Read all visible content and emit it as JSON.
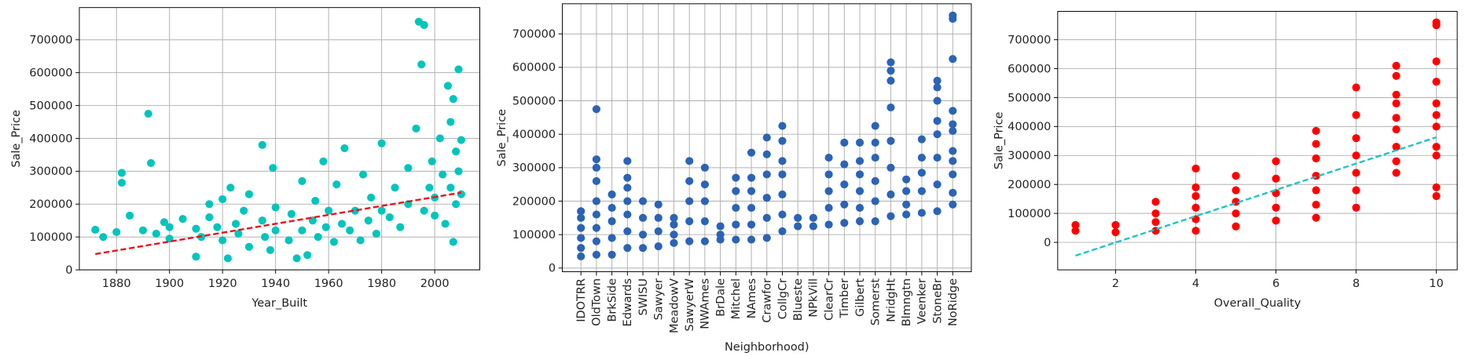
{
  "chart_data": [
    {
      "type": "scatter",
      "x_label": "Year_Built",
      "y_label": "Sale_Price",
      "color": "#00c5bc",
      "grid": true,
      "xlim": [
        1866,
        2017
      ],
      "ylim": [
        0,
        798000
      ],
      "xticks": [
        1880,
        1900,
        1920,
        1940,
        1960,
        1980,
        2000
      ],
      "yticks": [
        0,
        100000,
        200000,
        300000,
        400000,
        500000,
        600000,
        700000
      ],
      "x": [
        1872,
        1875,
        1880,
        1882,
        1882,
        1885,
        1890,
        1892,
        1893,
        1895,
        1898,
        1900,
        1900,
        1905,
        1910,
        1910,
        1912,
        1915,
        1915,
        1918,
        1920,
        1920,
        1922,
        1923,
        1925,
        1926,
        1928,
        1930,
        1930,
        1935,
        1935,
        1936,
        1938,
        1939,
        1940,
        1940,
        1945,
        1946,
        1948,
        1950,
        1950,
        1952,
        1954,
        1955,
        1956,
        1958,
        1959,
        1960,
        1962,
        1963,
        1965,
        1966,
        1968,
        1970,
        1972,
        1973,
        1975,
        1976,
        1978,
        1980,
        1980,
        1983,
        1985,
        1987,
        1990,
        1990,
        1993,
        1994,
        1995,
        1996,
        1996,
        1998,
        1999,
        2000,
        2000,
        2002,
        2003,
        2004,
        2005,
        2006,
        2006,
        2007,
        2007,
        2008,
        2008,
        2009,
        2009,
        2010,
        2010
      ],
      "values": [
        122000,
        100000,
        115000,
        295000,
        265000,
        165000,
        120000,
        475000,
        325000,
        110000,
        145000,
        95000,
        130000,
        155000,
        125000,
        40000,
        100000,
        160000,
        200000,
        130000,
        90000,
        215000,
        35000,
        250000,
        140000,
        110000,
        180000,
        70000,
        230000,
        380000,
        150000,
        100000,
        60000,
        310000,
        190000,
        120000,
        90000,
        170000,
        35000,
        120000,
        270000,
        45000,
        150000,
        210000,
        100000,
        330000,
        130000,
        180000,
        85000,
        260000,
        140000,
        370000,
        120000,
        180000,
        90000,
        290000,
        150000,
        220000,
        110000,
        180000,
        385000,
        160000,
        250000,
        130000,
        200000,
        310000,
        430000,
        755000,
        625000,
        745000,
        180000,
        250000,
        330000,
        220000,
        165000,
        400000,
        290000,
        140000,
        560000,
        450000,
        250000,
        520000,
        85000,
        360000,
        200000,
        610000,
        300000,
        395000,
        230000
      ],
      "trend": {
        "x": [
          1872,
          2010
        ],
        "values": [
          48000,
          235000
        ],
        "color": "#e8141b",
        "style": "dashed"
      }
    },
    {
      "type": "strip",
      "x_label": "Neighborhood)",
      "y_label": "Sale_Price",
      "color": "#2b63b6",
      "grid": true,
      "ylim": [
        -11000,
        790000
      ],
      "yticks": [
        0,
        100000,
        200000,
        300000,
        400000,
        500000,
        600000,
        700000
      ],
      "categories": [
        "IDOTRR",
        "OldTown",
        "BrkSide",
        "Edwards",
        "SWISU",
        "Sawyer",
        "MeadowV",
        "SawyerW",
        "NWAmes",
        "BrDale",
        "Mitchel",
        "NAmes",
        "Crawfor",
        "CollgCr",
        "Blueste",
        "NPkVill",
        "ClearCr",
        "Timber",
        "Gilbert",
        "Somerst",
        "NridgHt",
        "Blmngtn",
        "Veenker",
        "StoneBr",
        "NoRidge"
      ],
      "values": [
        [
          35000,
          60000,
          90000,
          120000,
          150000,
          170000
        ],
        [
          40000,
          80000,
          120000,
          160000,
          200000,
          260000,
          300000,
          325000,
          475000
        ],
        [
          40000,
          90000,
          140000,
          180000,
          220000
        ],
        [
          60000,
          110000,
          160000,
          200000,
          240000,
          270000,
          320000
        ],
        [
          60000,
          100000,
          150000,
          200000
        ],
        [
          65000,
          110000,
          150000,
          190000
        ],
        [
          75000,
          100000,
          130000,
          150000
        ],
        [
          80000,
          140000,
          200000,
          260000,
          320000
        ],
        [
          80000,
          140000,
          200000,
          250000,
          300000
        ],
        [
          85000,
          100000,
          125000
        ],
        [
          85000,
          130000,
          180000,
          230000,
          270000
        ],
        [
          85000,
          130000,
          180000,
          230000,
          270000,
          345000
        ],
        [
          90000,
          150000,
          210000,
          280000,
          340000,
          390000
        ],
        [
          110000,
          160000,
          220000,
          280000,
          320000,
          380000,
          425000
        ],
        [
          125000,
          150000
        ],
        [
          125000,
          150000
        ],
        [
          130000,
          180000,
          230000,
          280000,
          330000
        ],
        [
          135000,
          190000,
          250000,
          310000,
          375000
        ],
        [
          140000,
          180000,
          230000,
          280000,
          320000,
          375000
        ],
        [
          140000,
          200000,
          260000,
          330000,
          375000,
          425000
        ],
        [
          155000,
          220000,
          300000,
          380000,
          480000,
          560000,
          590000,
          615000
        ],
        [
          160000,
          190000,
          230000,
          265000
        ],
        [
          165000,
          230000,
          285000,
          330000,
          385000
        ],
        [
          170000,
          250000,
          330000,
          400000,
          440000,
          500000,
          540000,
          560000
        ],
        [
          190000,
          225000,
          280000,
          320000,
          350000,
          410000,
          430000,
          470000,
          625000,
          745000,
          755000
        ]
      ]
    },
    {
      "type": "scatter-groups",
      "x_label": "Overall_Quality",
      "y_label": "Sale_Price",
      "color": "#ff0000",
      "grid": true,
      "xlim": [
        0.556,
        10.52
      ],
      "ylim": [
        -95000,
        798000
      ],
      "xticks": [
        2,
        4,
        6,
        8,
        10
      ],
      "yticks": [
        0,
        100000,
        200000,
        300000,
        400000,
        500000,
        600000,
        700000
      ],
      "x": [
        1,
        2,
        3,
        4,
        5,
        6,
        7,
        8,
        9,
        10
      ],
      "values": [
        [
          40000,
          60000
        ],
        [
          35000,
          60000
        ],
        [
          40000,
          70000,
          100000,
          140000
        ],
        [
          40000,
          80000,
          120000,
          160000,
          190000,
          255000
        ],
        [
          55000,
          100000,
          140000,
          180000,
          230000
        ],
        [
          75000,
          120000,
          170000,
          220000,
          280000
        ],
        [
          85000,
          130000,
          180000,
          230000,
          290000,
          340000,
          385000
        ],
        [
          120000,
          180000,
          240000,
          300000,
          360000,
          440000,
          535000
        ],
        [
          240000,
          280000,
          330000,
          390000,
          430000,
          480000,
          510000,
          575000,
          610000
        ],
        [
          160000,
          190000,
          300000,
          330000,
          400000,
          440000,
          480000,
          555000,
          625000,
          750000,
          760000
        ]
      ],
      "trend": {
        "x": [
          1,
          10
        ],
        "values": [
          -46000,
          363000
        ],
        "color": "#20c4c4",
        "style": "dashed"
      }
    }
  ]
}
